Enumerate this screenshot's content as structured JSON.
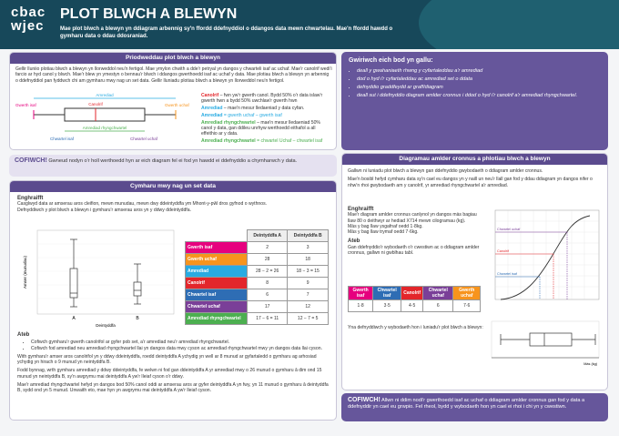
{
  "header": {
    "logo_top": "cbac",
    "logo_bottom": "wjec",
    "title": "PLOT BLWCH A BLEWYN",
    "subtitle": "Mae plot blwch a blewyn yn ddiagram arbennig sy'n ffordd ddefnyddiol o ddangos data mewn chwartelau. Mae'n ffordd hawdd o gymharu data o ddau ddosraniad."
  },
  "properties": {
    "title": "Priodweddau plot blwch a blewyn",
    "intro": "Gellir lluniio plotiau blwch a blewyn yn llorweddol neu'n fertigol. Mae ymylon chwith a dde'r petryal yn dangos y chwarteli isaf ac uchaf. Mae'r canolrif wedi'i farcio ar hyd canol y blwch. Mae'r blew yn ymestyn o bennau'r blwch i ddangos gwerthoedd isaf ac uchaf y data. Mae plotiau blwch a blewyn yn arbennig o ddefnyddiol pan fyddwch chi am gymharu mwy nag un set data. Gellir lluniadu plotiau blwch a blewyn yn llorweddol neu'n fertigol.",
    "diagram_labels": {
      "lowest": "Gwerth isaf",
      "median": "Canolrif",
      "highest": "Gwerth uchaf",
      "lower_quartile": "Chwartel isaf",
      "iqr": "Amrediad rhyngchwartel",
      "upper_quartile": "Chwartel uchaf",
      "range": "Amrediad"
    },
    "definitions": [
      {
        "term": "Canolrif",
        "text": " – fwn yw'r gwerth canol. Bydd 50% o'r data islaw'r gwerth hwn a bydd 50% uwchlaw'r gwerth hwn"
      },
      {
        "term": "Amrediad",
        "text": " – mae'n mesur lledaeniad y data cyfan."
      },
      {
        "term": "Amrediad",
        "text": " = gwerth uchaf – gwerth isaf"
      },
      {
        "term": "Amrediad rhyngchwartel",
        "text": " – mae'n mesur lledaeniad 50% canol y data, gan ddileu unrhyw werthoedd eithafol a all effeithio ar y data."
      },
      {
        "term": "Amrediad rhyngchwartel",
        "text": " = chwartel Uchaf – chwartel isaf"
      }
    ]
  },
  "check": {
    "title": "Gwiriwch eich bod yn gallu:",
    "items": [
      "deall y gwahaniaeth rhwng y cyfartaleddau a'r amrediad",
      "dod o hyd i'r cyfartaleddau ac amrediad set o ddata",
      "defnyddio graddfeydd ar graff/diagram",
      "deall sut i ddefnyddio diagram amlder cronnus i ddod o hyd i'r canolrif a'r amrediad rhyngchwartel."
    ]
  },
  "remember_left": {
    "label": "COFIWCH!",
    "text": " Gwneud nodyn o'r holl werthoedd hyn ar eich diagram fel ei fod yn hawdd ei ddefnyddio a chymharwch y data."
  },
  "compare": {
    "title": "Cymharu mwy nag un set data",
    "example_heading": "Enghraifft",
    "example_text": "Casglwyd data ar amserau aros cleifion, mewn munudau, mewn dwy ddeintyddfa ym Mhont-y-pŵl dros gyfnod o wythnos.",
    "task": "Defnyddiwch y plot blwch a blewyn i gymharu'r amserau aros yn y ddwy ddeintyddfa.",
    "chart": {
      "y_label": "Amser (munudau)",
      "x_label": "Deintyddfa",
      "group_a": "A",
      "group_b": "B"
    },
    "table": {
      "header": [
        "Deintyddfa A",
        "Deintyddfa B"
      ],
      "row_colors": [
        "#e6007e",
        "#f7941d",
        "#29abe2",
        "#e3262b",
        "#2e6db4",
        "#7a3f98",
        "#4caf50"
      ],
      "rows": [
        [
          "Gwerth isaf",
          "2",
          "3"
        ],
        [
          "Gwerth uchaf",
          "28",
          "18"
        ],
        [
          "Amrediad",
          "28 − 2 = 26",
          "18 − 3 = 15"
        ],
        [
          "Canolrif",
          "8",
          "9"
        ],
        [
          "Chwartel isaf",
          "6",
          "7"
        ],
        [
          "Chwartel uchaf",
          "17",
          "12"
        ],
        [
          "Amrediad rhyngchwartel",
          "17 − 6 = 11",
          "12 − 7 = 5"
        ]
      ]
    },
    "answer_heading": "Ateb",
    "answer_points": [
      "Cofiwch gymharu'r gwerth canolrifol ar gyfer pob set, a'r amrediad neu'r amrediad rhyngchwartel.",
      "Cofiwch fod amrediad neu amrediad rhyngchwartel llai yn dangos data mwy cyson ac amrediad rhyngchwartel mwy yn dangos data llai cyson."
    ],
    "paragraphs": [
      "With gymharu'r amser aros canolrifol yn y ddwy ddeintyddfa, roedd deintyddfa A ychydig yn well ar 8 munud ar gyfartaledd o gymharu ag arhosiad ychydig yn hirach o 9 munud yn neintyddfa B.",
      "Fodd bynnag, wrth gymharu amrediad y ddwy ddeintyddfa, fe welwn ni fod gan ddeintyddfa A yr amrediad mwy o 26 munud o gymharu â dim ond 15 munud yn neintyddfa B, sy'n awgrymu mai deintyddfa A yw'r lleiaf cyson o'r ddwy.",
      "Mae'r amrediad rhyngchwartel hefyd yn dangos bod 50% canol oddi ar amserau aros ar gyfer deintyddfa A yn fwy, yn 11 munud o gymharu â deintyddfa B, sydd ond yn 5 munud. Unwaith eto, mae hyn yn awgrymu mai deintyddfa A yw'r lleiaf cyson."
    ]
  },
  "cumulative": {
    "title": "Diagramau amlder cronnus a phlotiau blwch a blewyn",
    "intro": "Gallwn ni luniadu plot blwch a blewyn gan ddefnyddio gwybodaeth o ddiagram amlder cronnus.",
    "intro2": "Mae'n bosibl hefyd cymharu data sy'n cael eu dangos yn y naill un neu'r llall gan fod y ddau ddiagram yn dangos nifer o nhw'n rhoi gwybodaeth am y canolrif, yr amrediad rhyngchwartel a'r amrediad.",
    "example_heading": "Enghraifft",
    "example_text": "Mae'r diagram amlder cronnus canlynol yn dangos màs bagiau llaw 80 o deithwyr ar hediad X714 mewn cilogramau (kg).",
    "lightest": "Màs y bag llaw ysgafnaf oedd 1·8kg.",
    "heaviest": "Màs y bag llaw trymaf oedd 7·6kg.",
    "answer_heading": "Ateb",
    "answer_text": "Gan ddefnyddio'r wybodaeth o'r cwestiwn ac o ddiagram amlder cronnus, gallwn ni gwblhau tabl.",
    "table": {
      "header": [
        "Gwerth isaf",
        "Chwartel isaf",
        "Canolrif",
        "Chwartel uchaf",
        "Gwerth uchaf"
      ],
      "header_colors": [
        "#e6007e",
        "#2e6db4",
        "#e3262b",
        "#7a3f98",
        "#f7941d"
      ],
      "values": [
        "1·8",
        "3·5",
        "4·5",
        "6",
        "7·6"
      ]
    },
    "then_text": "Yna defnyddiwch y wybodaeth hon i luniadu'r plot blwch a blewyn:",
    "chart_labels": {
      "upper": "Chwartel uchaf",
      "median": "Canolrif",
      "lower": "Chwartel isaf",
      "x_label": "Màs (kg)"
    }
  },
  "remember_right": {
    "label": "COFIWCH!",
    "text": " Allwn ni ddim nodi'r gwerthoedd isaf ac uchaf o ddiagram amlder cronnus gan fod y data a ddefnyddir yn cael eu grwpio. Fel rheol, bydd y wybodaeth hon yn cael ei rhoi i chi yn y cwestiwn."
  }
}
